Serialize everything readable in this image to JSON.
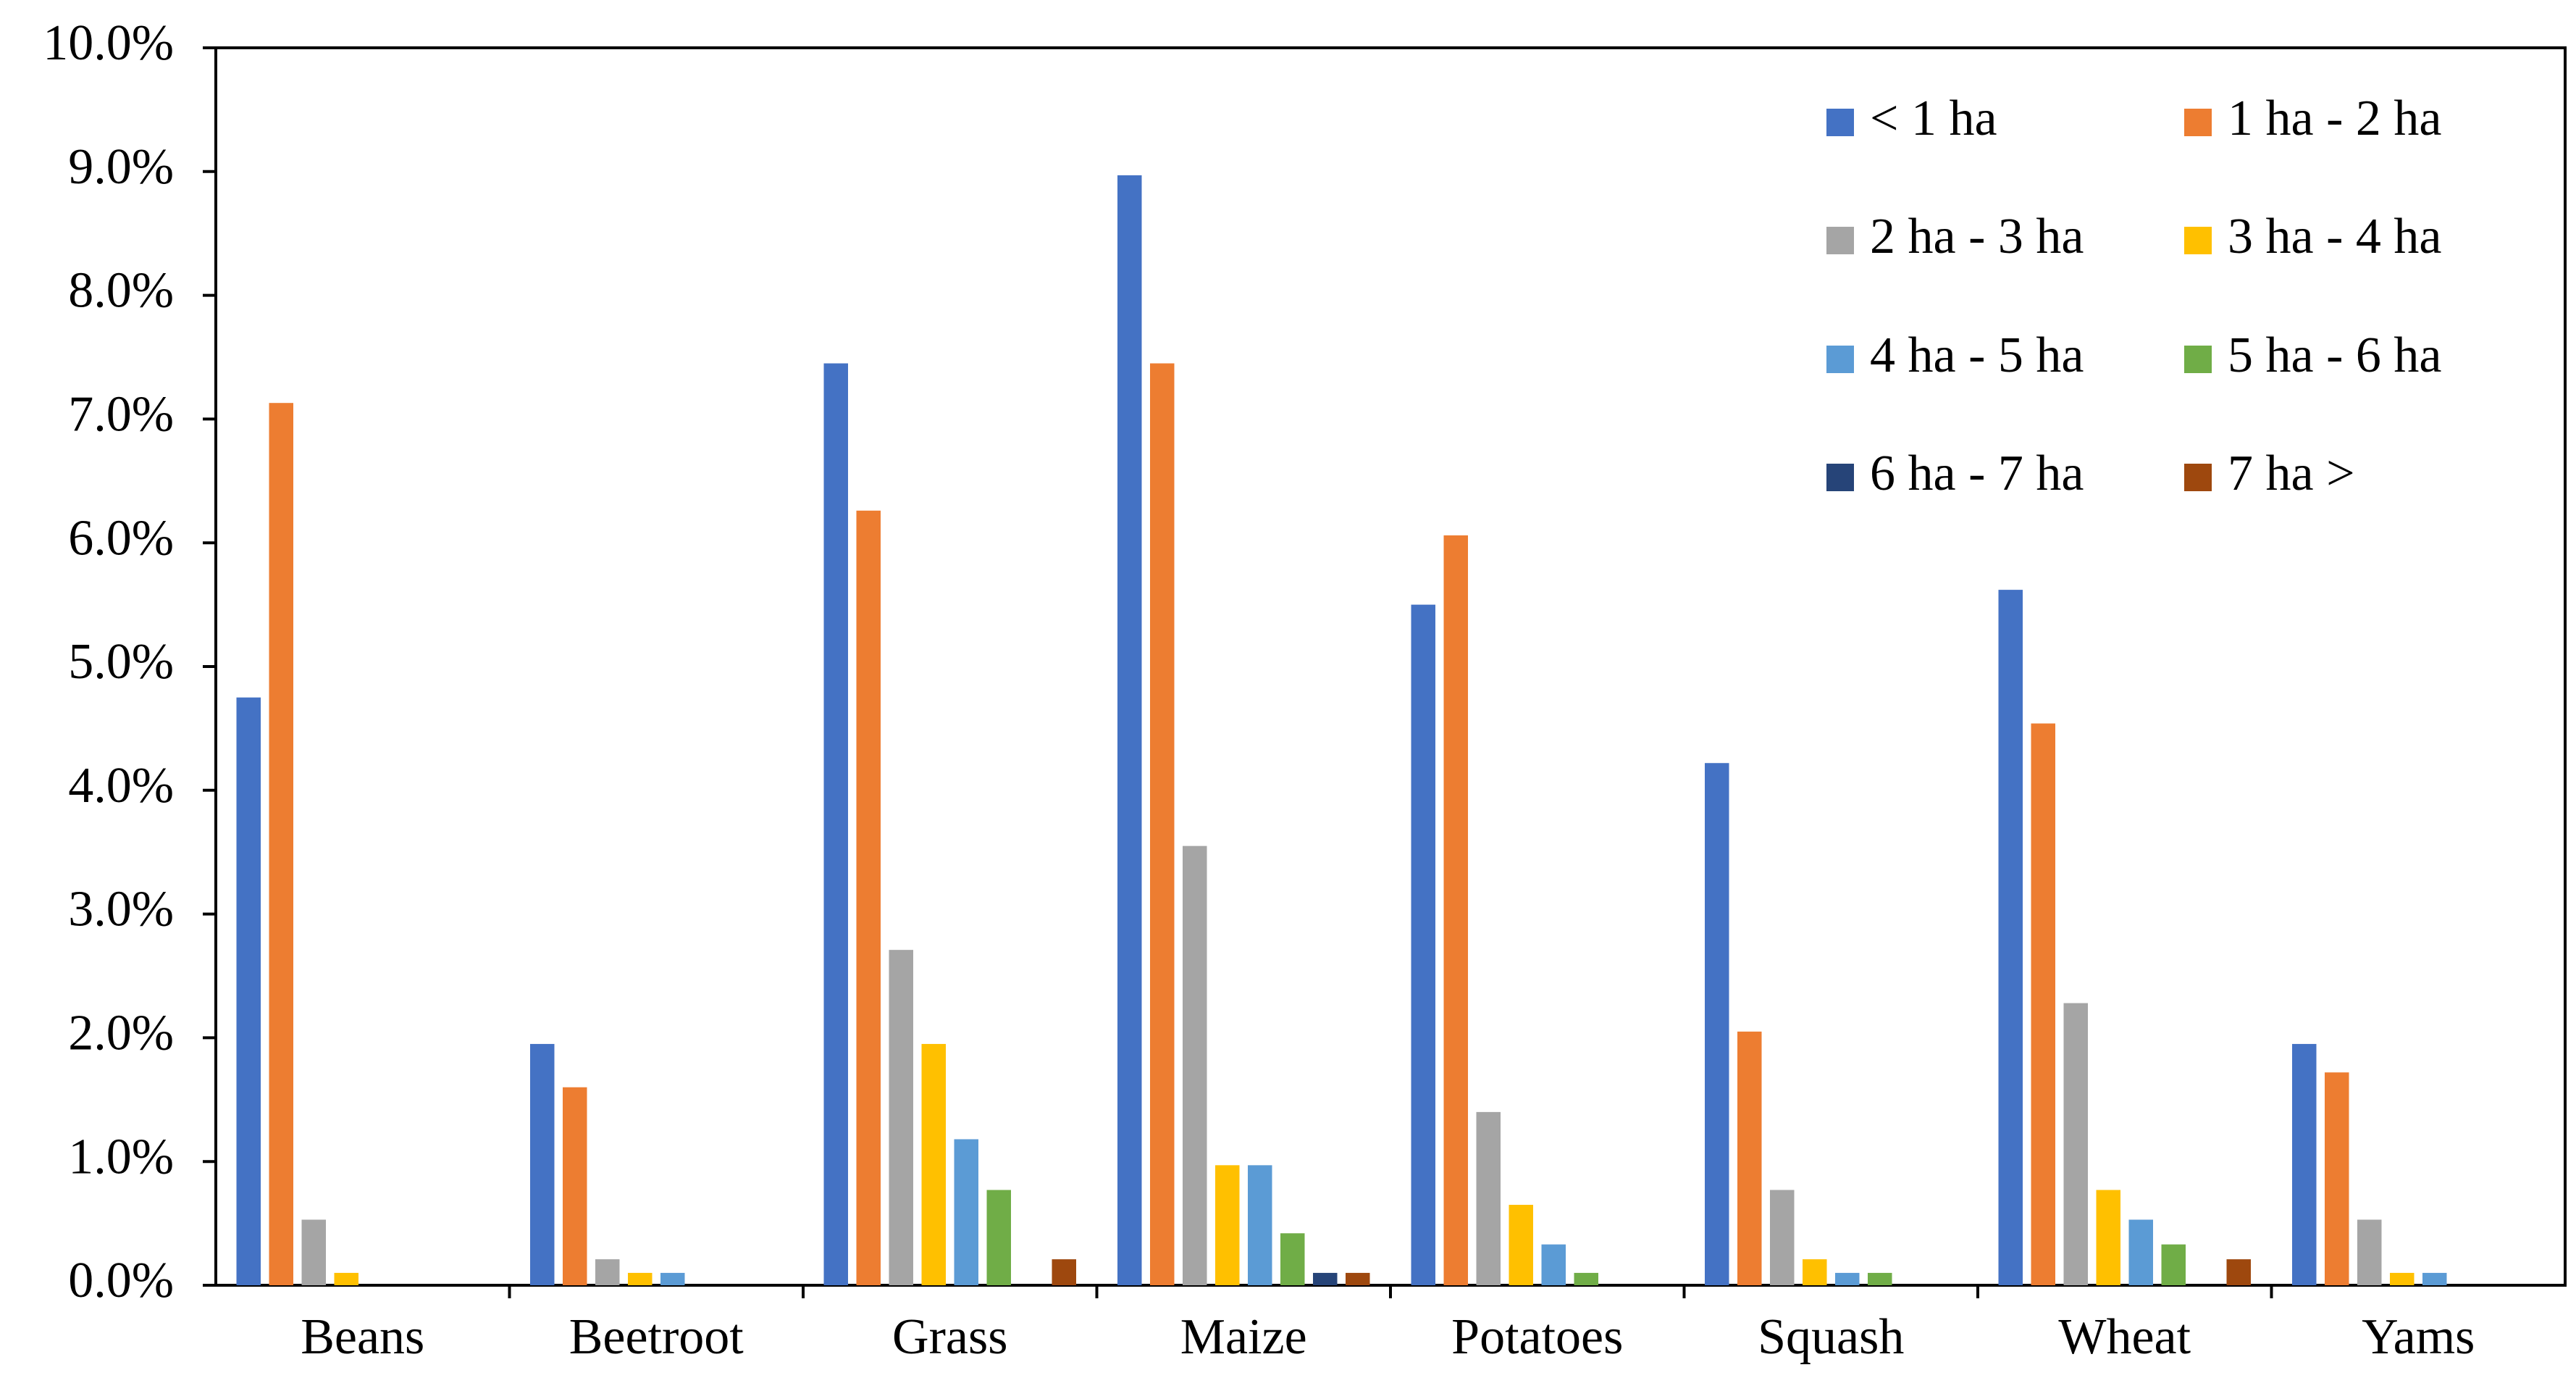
{
  "chart_data": {
    "type": "bar",
    "title": "",
    "xlabel": "",
    "ylabel": "",
    "ylim": [
      0,
      10
    ],
    "y_ticks": [
      0,
      1,
      2,
      3,
      4,
      5,
      6,
      7,
      8,
      9,
      10
    ],
    "y_tick_labels": [
      "0.0%",
      "1.0%",
      "2.0%",
      "3.0%",
      "4.0%",
      "5.0%",
      "6.0%",
      "7.0%",
      "8.0%",
      "9.0%",
      "10.0%"
    ],
    "grid": false,
    "legend_position": "top-right",
    "categories": [
      "Beans",
      "Beetroot",
      "Grass",
      "Maize",
      "Potatoes",
      "Squash",
      "Wheat",
      "Yams"
    ],
    "series": [
      {
        "name": "< 1 ha",
        "color": "#4472C4",
        "values": [
          4.75,
          1.95,
          7.45,
          8.97,
          5.5,
          4.22,
          5.62,
          1.95
        ]
      },
      {
        "name": "1 ha - 2 ha",
        "color": "#ED7D31",
        "values": [
          7.13,
          1.6,
          6.26,
          7.45,
          6.06,
          2.05,
          4.54,
          1.72
        ]
      },
      {
        "name": "2 ha - 3 ha",
        "color": "#A5A5A5",
        "values": [
          0.53,
          0.21,
          2.71,
          3.55,
          1.4,
          0.77,
          2.28,
          0.53
        ]
      },
      {
        "name": "3 ha - 4 ha",
        "color": "#FFC000",
        "values": [
          0.1,
          0.1,
          1.95,
          0.97,
          0.65,
          0.21,
          0.77,
          0.1
        ]
      },
      {
        "name": "4 ha - 5 ha",
        "color": "#5B9BD5",
        "values": [
          0,
          0.1,
          1.18,
          0.97,
          0.33,
          0.1,
          0.53,
          0.1
        ]
      },
      {
        "name": "5 ha - 6 ha",
        "color": "#70AD47",
        "values": [
          0,
          0,
          0.77,
          0.42,
          0.1,
          0.1,
          0.33,
          0
        ]
      },
      {
        "name": "6 ha - 7 ha",
        "color": "#264478",
        "values": [
          0,
          0,
          0,
          0.1,
          0,
          0,
          0,
          0
        ]
      },
      {
        "name": "7 ha >",
        "color": "#9E480E",
        "values": [
          0,
          0,
          0.21,
          0.1,
          0,
          0,
          0.21,
          0
        ]
      }
    ]
  }
}
